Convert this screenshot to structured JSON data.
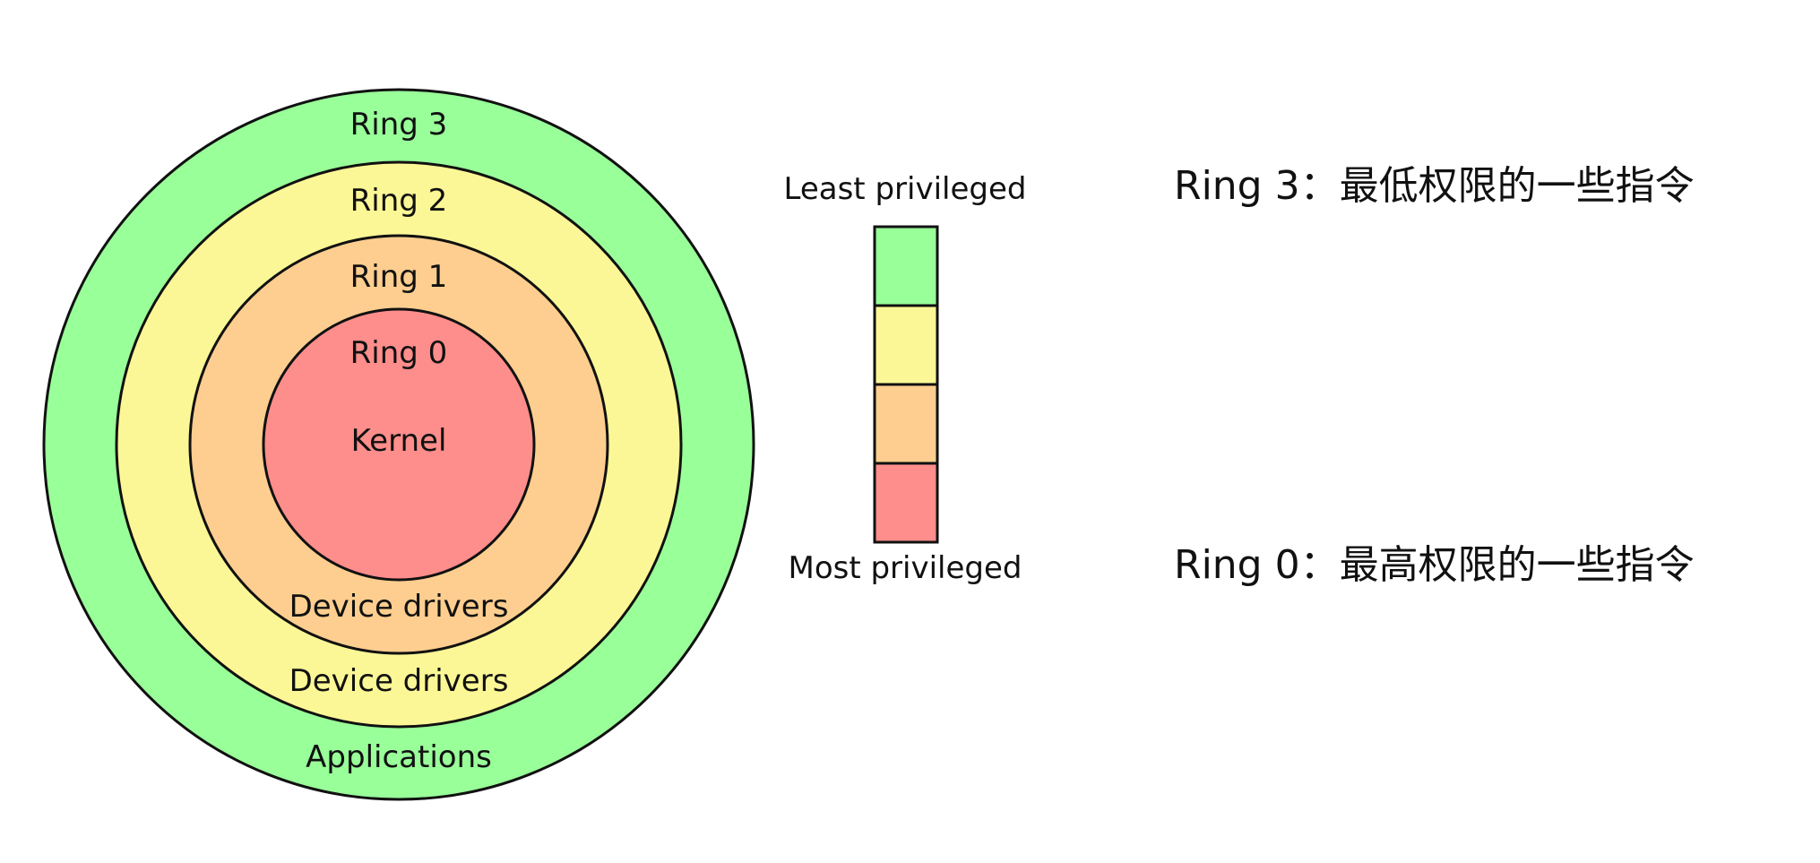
{
  "colors": {
    "ring3": "#99ff99",
    "ring2": "#fcf796",
    "ring1": "#fdce8f",
    "ring0": "#fd8e8b",
    "outline": "#111111",
    "background": "#ffffff"
  },
  "rings": {
    "ring3_title": "Ring 3",
    "ring3_subtitle": "Applications",
    "ring2_title": "Ring 2",
    "ring2_subtitle": "Device drivers",
    "ring1_title": "Ring 1",
    "ring1_subtitle": "Device drivers",
    "ring0_title": "Ring 0",
    "ring0_subtitle": "Kernel"
  },
  "privilege_scale": {
    "top_label": "Least privileged",
    "bottom_label": "Most privileged",
    "segments": [
      "ring3",
      "ring2",
      "ring1",
      "ring0"
    ]
  },
  "notes": {
    "ring3_note": "Ring 3：最低权限的一些指令",
    "ring0_note": "Ring 0：最高权限的一些指令"
  }
}
